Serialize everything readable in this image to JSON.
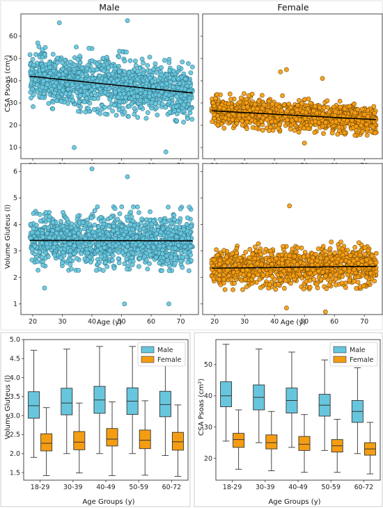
{
  "colors": {
    "male": "#67c6dd",
    "female": "#f59d12",
    "male_edge": "#2b6f80",
    "female_edge": "#6b4200"
  },
  "chart_data": [
    {
      "type": "scatter",
      "title": "Male",
      "xlabel": "",
      "ylabel": "CSA Psoas (cm²)",
      "xlim": [
        16,
        76
      ],
      "ylim": [
        5,
        70
      ],
      "xticks": [
        20,
        30,
        40,
        50,
        60,
        70
      ],
      "yticks": [
        10,
        20,
        30,
        40,
        50,
        60
      ],
      "x_tick_labels": [
        "20",
        "30",
        "40",
        "50",
        "60",
        "70"
      ],
      "y_tick_labels": [
        "10",
        "20",
        "30",
        "40",
        "50",
        "60"
      ],
      "series": [
        {
          "x_range": [
            19,
            74
          ],
          "y_center_start": 42,
          "y_center_end": 34.5,
          "y_spread": 9,
          "outliers": [
            [
              29,
              66
            ],
            [
              52,
              67
            ],
            [
              34,
              10
            ],
            [
              65,
              8
            ]
          ]
        }
      ],
      "trend": {
        "x": [
          19,
          74
        ],
        "y": [
          42,
          34.5
        ]
      }
    },
    {
      "type": "scatter",
      "title": "Female",
      "xlabel": "",
      "ylabel": "",
      "xlim": [
        16,
        76
      ],
      "ylim": [
        5,
        70
      ],
      "xticks": [
        20,
        30,
        40,
        50,
        60,
        70
      ],
      "yticks": [
        10,
        20,
        30,
        40,
        50,
        60
      ],
      "x_tick_labels": [
        "20",
        "30",
        "40",
        "50",
        "60",
        "70"
      ],
      "y_tick_labels": [],
      "series": [
        {
          "x_range": [
            19,
            74
          ],
          "y_center_start": 26.5,
          "y_center_end": 22.5,
          "y_spread": 5,
          "outliers": [
            [
              44,
              45
            ],
            [
              42,
              44
            ],
            [
              56,
              41
            ],
            [
              50,
              12
            ]
          ]
        }
      ],
      "trend": {
        "x": [
          19,
          74
        ],
        "y": [
          26.5,
          22.5
        ]
      }
    },
    {
      "type": "scatter",
      "title": "",
      "xlabel": "Age (y)",
      "ylabel": "Volume Gluteus (l)",
      "xlim": [
        16,
        76
      ],
      "ylim": [
        0.6,
        6.3
      ],
      "xticks": [
        20,
        30,
        40,
        50,
        60,
        70
      ],
      "yticks": [
        1,
        2,
        3,
        4,
        5,
        6
      ],
      "x_tick_labels": [
        "20",
        "30",
        "40",
        "50",
        "60",
        "70"
      ],
      "y_tick_labels": [
        "1",
        "2",
        "3",
        "4",
        "5",
        "6"
      ],
      "series": [
        {
          "x_range": [
            19,
            74
          ],
          "y_center_start": 3.4,
          "y_center_end": 3.38,
          "y_spread": 0.75,
          "outliers": [
            [
              40,
              6.1
            ],
            [
              52,
              5.8
            ],
            [
              51,
              1.0
            ],
            [
              66,
              1.0
            ],
            [
              24,
              1.6
            ]
          ]
        }
      ],
      "trend": {
        "x": [
          19,
          74
        ],
        "y": [
          3.4,
          3.38
        ]
      }
    },
    {
      "type": "scatter",
      "title": "",
      "xlabel": "Age (y)",
      "ylabel": "",
      "xlim": [
        16,
        76
      ],
      "ylim": [
        0.6,
        6.3
      ],
      "xticks": [
        20,
        30,
        40,
        50,
        60,
        70
      ],
      "yticks": [
        1,
        2,
        3,
        4,
        5,
        6
      ],
      "x_tick_labels": [
        "20",
        "30",
        "40",
        "50",
        "60",
        "70"
      ],
      "y_tick_labels": [],
      "series": [
        {
          "x_range": [
            19,
            74
          ],
          "y_center_start": 2.35,
          "y_center_end": 2.42,
          "y_spread": 0.55,
          "outliers": [
            [
              45,
              4.7
            ],
            [
              57,
              0.7
            ],
            [
              44,
              0.85
            ]
          ]
        }
      ],
      "trend": {
        "x": [
          19,
          74
        ],
        "y": [
          2.35,
          2.42
        ]
      }
    },
    {
      "type": "box",
      "title": "",
      "xlabel": "Age Groups (y)",
      "ylabel": "Volume Gluteus (l)",
      "ylim": [
        1.3,
        5.0
      ],
      "yticks": [
        1.5,
        2.0,
        2.5,
        3.0,
        3.5,
        4.0,
        4.5,
        5.0
      ],
      "y_tick_labels": [
        "1.5",
        "2.0",
        "2.5",
        "3.0",
        "3.5",
        "4.0",
        "4.5",
        "5.0"
      ],
      "categories": [
        "18-29",
        "30-39",
        "40-49",
        "50-59",
        "60-72"
      ],
      "legend": {
        "position": "top-right",
        "entries": [
          "Male",
          "Female"
        ]
      },
      "series": [
        {
          "name": "Male",
          "whislo": [
            1.9,
            2.0,
            2.0,
            2.0,
            1.95
          ],
          "q1": [
            2.93,
            3.02,
            3.06,
            3.03,
            2.97
          ],
          "med": [
            3.26,
            3.33,
            3.41,
            3.38,
            3.29
          ],
          "q3": [
            3.63,
            3.72,
            3.77,
            3.73,
            3.64
          ],
          "whishi": [
            4.72,
            4.75,
            4.82,
            4.82,
            4.63
          ]
        },
        {
          "name": "Female",
          "whislo": [
            1.42,
            1.49,
            1.42,
            1.43,
            1.4
          ],
          "q1": [
            2.07,
            2.1,
            2.2,
            2.13,
            2.09
          ],
          "med": [
            2.27,
            2.3,
            2.38,
            2.35,
            2.31
          ],
          "q3": [
            2.52,
            2.58,
            2.66,
            2.62,
            2.56
          ],
          "whishi": [
            3.21,
            3.33,
            3.36,
            3.39,
            3.28
          ]
        }
      ]
    },
    {
      "type": "box",
      "title": "",
      "xlabel": "Age Groups (y)",
      "ylabel": "CSA Psoas (cm²)",
      "ylim": [
        13,
        58
      ],
      "yticks": [
        20,
        30,
        40,
        50
      ],
      "y_tick_labels": [
        "20",
        "30",
        "40",
        "50"
      ],
      "categories": [
        "18-29",
        "30-39",
        "40-49",
        "50-59",
        "60-72"
      ],
      "legend": {
        "position": "top-right",
        "entries": [
          "Male",
          "Female"
        ]
      },
      "series": [
        {
          "name": "Male",
          "whislo": [
            25.5,
            25.0,
            23.5,
            22.5,
            21.5
          ],
          "q1": [
            36.5,
            35.5,
            34.5,
            33.5,
            31.5
          ],
          "med": [
            40.0,
            39.5,
            38.5,
            37.0,
            35.0
          ],
          "q3": [
            44.5,
            43.5,
            42.5,
            40.5,
            38.5
          ],
          "whishi": [
            56.5,
            55.0,
            54.0,
            51.5,
            49.0
          ]
        },
        {
          "name": "Female",
          "whislo": [
            16.5,
            16.0,
            15.5,
            15.5,
            15.0
          ],
          "q1": [
            23.5,
            23.0,
            22.5,
            22.0,
            21.0
          ],
          "med": [
            26.0,
            25.0,
            24.5,
            24.0,
            23.0
          ],
          "q3": [
            28.0,
            27.5,
            27.0,
            26.0,
            25.0
          ],
          "whishi": [
            35.5,
            35.0,
            34.0,
            32.5,
            31.5
          ]
        }
      ]
    }
  ]
}
